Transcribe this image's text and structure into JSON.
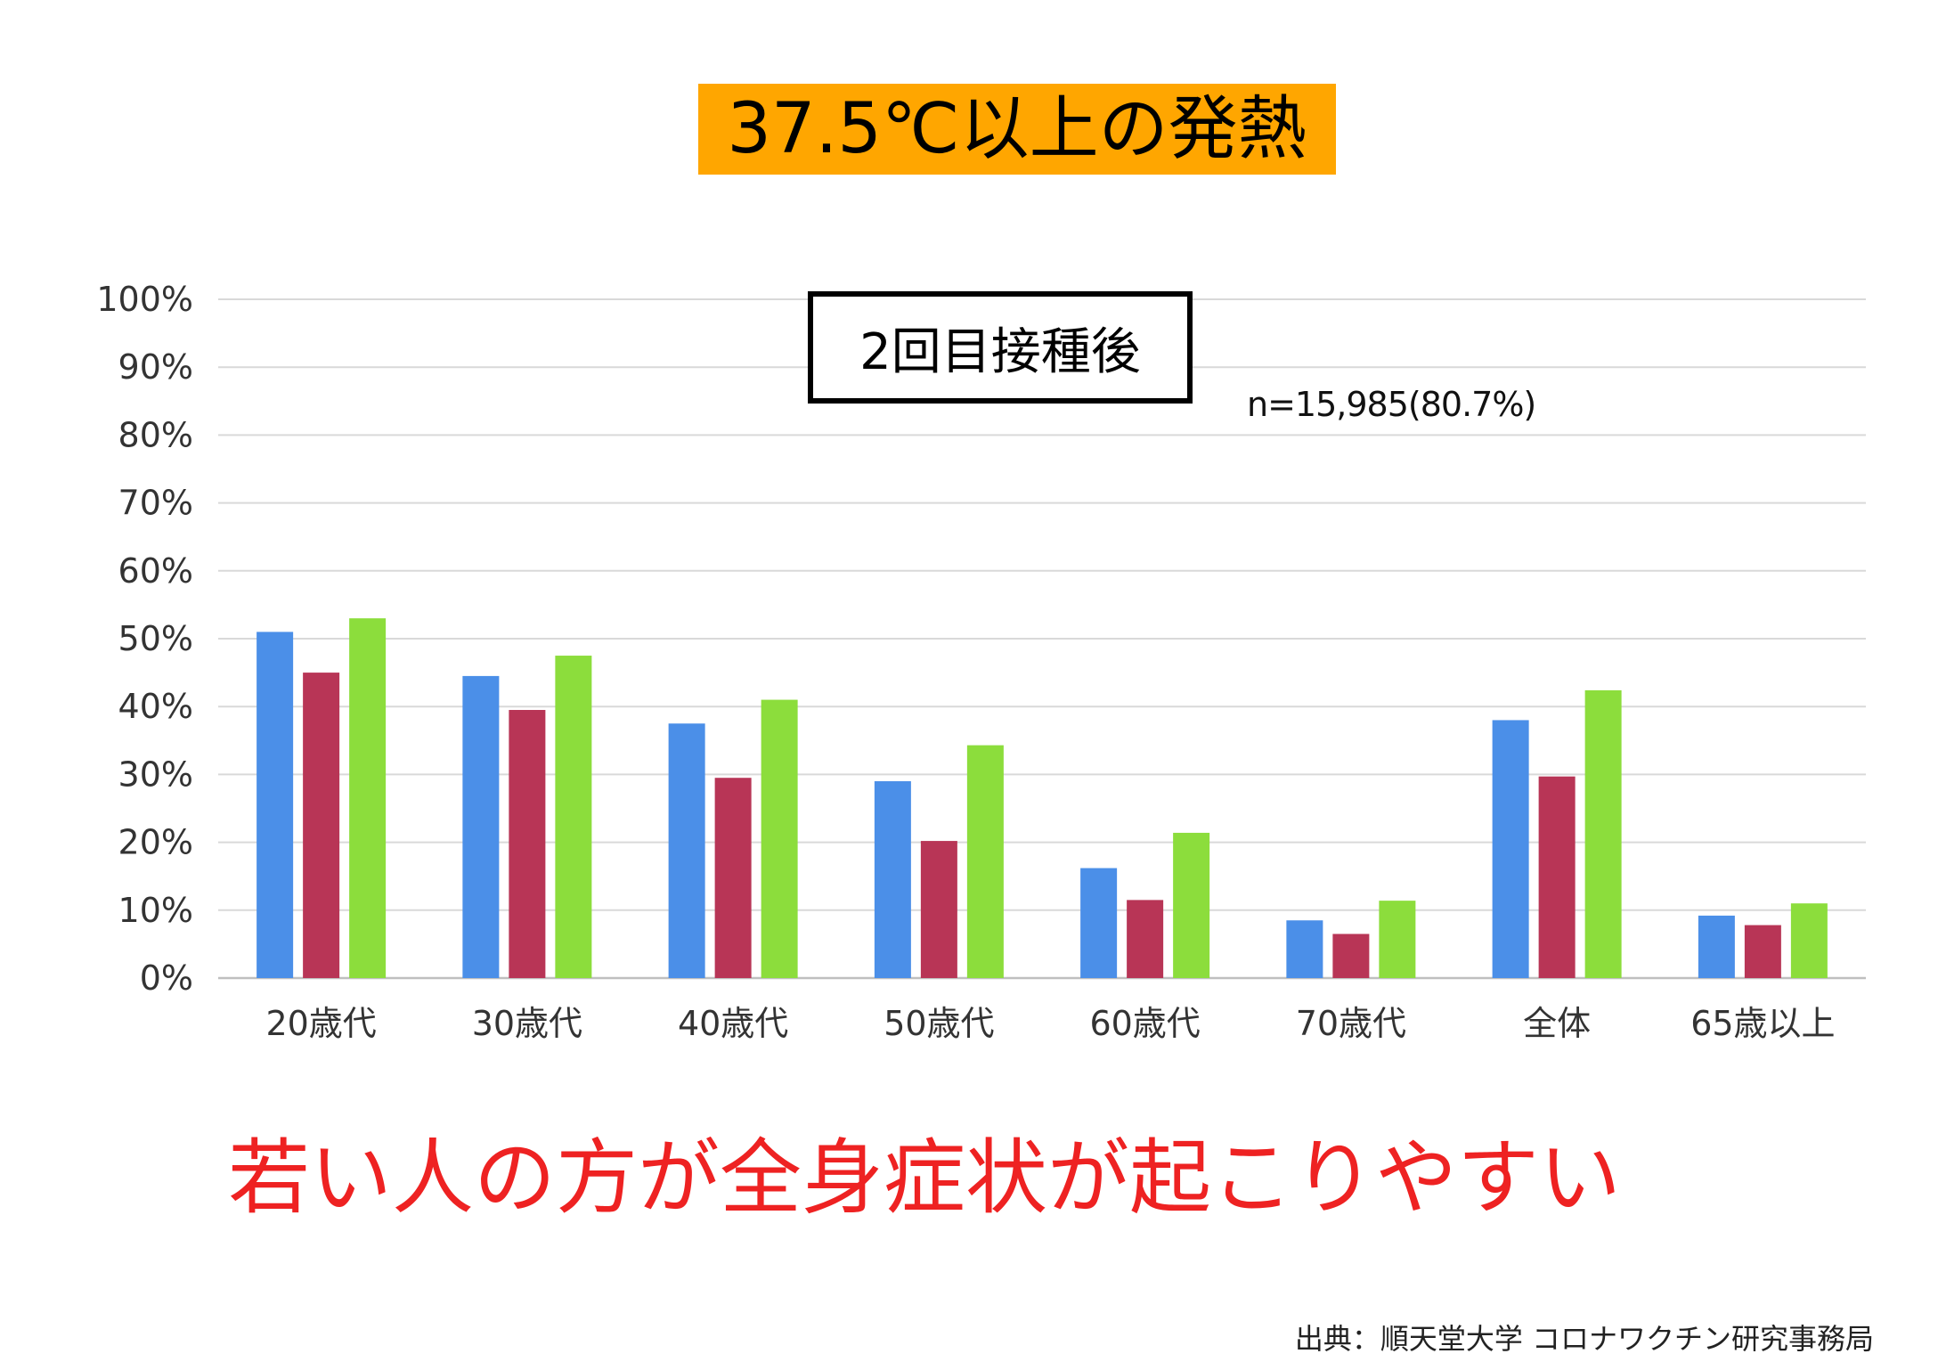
{
  "title": "37.5℃以上の発熱",
  "subtitle": "2回目接種後",
  "sample_note": "n=15,985(80.7%)",
  "conclusion": "若い人の方が全身症状が起こりやすい",
  "source": "出典：順天堂大学 コロナワクチン研究事務局",
  "colors": {
    "title_bg": "#ffa600",
    "conclusion_text": "#ee2222",
    "series": [
      "#4b8fe8",
      "#b83556",
      "#8cdd3c"
    ],
    "grid": "#d9d9d9"
  },
  "chart_data": {
    "type": "bar",
    "categories": [
      "20歳代",
      "30歳代",
      "40歳代",
      "50歳代",
      "60歳代",
      "70歳代",
      "全体",
      "65歳以上"
    ],
    "series": [
      {
        "values": [
          51,
          44.5,
          37.5,
          29,
          16.2,
          8.5,
          38,
          9.2
        ]
      },
      {
        "values": [
          45,
          39.5,
          29.5,
          20.2,
          11.5,
          6.5,
          29.7,
          7.8
        ]
      },
      {
        "values": [
          53,
          47.5,
          41,
          34.3,
          21.4,
          11.4,
          42.4,
          11
        ]
      }
    ],
    "ylim": [
      0,
      100
    ],
    "yticks": [
      0,
      10,
      20,
      30,
      40,
      50,
      60,
      70,
      80,
      90,
      100
    ],
    "ytick_labels": [
      "0%",
      "10%",
      "20%",
      "30%",
      "40%",
      "50%",
      "60%",
      "70%",
      "80%",
      "90%",
      "100%"
    ],
    "grid": true,
    "legend": "none"
  }
}
